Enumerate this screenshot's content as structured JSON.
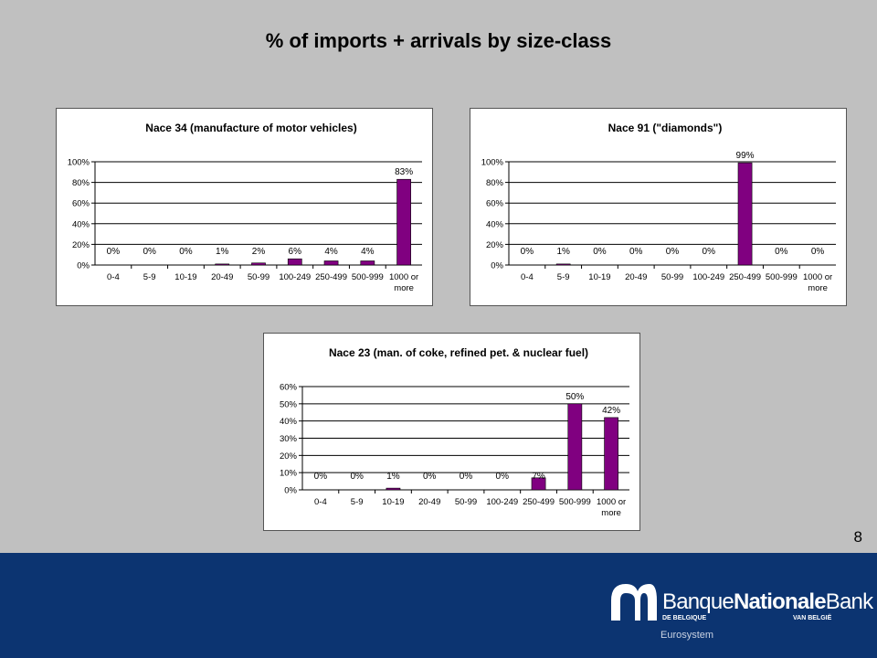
{
  "page": {
    "title": "% of imports + arrivals by size-class",
    "page_number": "8"
  },
  "branding": {
    "bank_name_part1": "Banque",
    "bank_name_part2": "Nationale",
    "bank_name_part3": "Bank",
    "sub_left": "DE BELGIQUE",
    "sub_right": "VAN BELGIË",
    "eurosystem": "Eurosystem",
    "logo_icon": "bnb-logo-icon"
  },
  "colors": {
    "bar": "#800080",
    "background": "#c0c0c0",
    "footer": "#0c3471"
  },
  "chart_data": [
    {
      "type": "bar",
      "title": "Nace 34 (manufacture of motor vehicles)",
      "categories": [
        "0-4",
        "5-9",
        "10-19",
        "20-49",
        "50-99",
        "100-249",
        "250-499",
        "500-999",
        "1000 or more"
      ],
      "values": [
        0,
        0,
        0,
        1,
        2,
        6,
        4,
        4,
        83
      ],
      "data_labels": [
        "0%",
        "0%",
        "0%",
        "1%",
        "2%",
        "6%",
        "4%",
        "4%",
        "83%"
      ],
      "yticks": [
        "0%",
        "20%",
        "40%",
        "60%",
        "80%",
        "100%"
      ],
      "ylim": [
        0,
        100
      ],
      "ystep": 20,
      "grid": true,
      "legend": "none"
    },
    {
      "type": "bar",
      "title": "Nace 91 (\"diamonds\")",
      "categories": [
        "0-4",
        "5-9",
        "10-19",
        "20-49",
        "50-99",
        "100-249",
        "250-499",
        "500-999",
        "1000 or more"
      ],
      "values": [
        0,
        1,
        0,
        0,
        0,
        0,
        99,
        0,
        0
      ],
      "data_labels": [
        "0%",
        "1%",
        "0%",
        "0%",
        "0%",
        "0%",
        "99%",
        "0%",
        "0%"
      ],
      "yticks": [
        "0%",
        "20%",
        "40%",
        "60%",
        "80%",
        "100%"
      ],
      "ylim": [
        0,
        100
      ],
      "ystep": 20,
      "grid": true,
      "legend": "none"
    },
    {
      "type": "bar",
      "title": "Nace 23 (man. of coke, refined pet. & nuclear fuel)",
      "categories": [
        "0-4",
        "5-9",
        "10-19",
        "20-49",
        "50-99",
        "100-249",
        "250-499",
        "500-999",
        "1000 or more"
      ],
      "values": [
        0,
        0,
        1,
        0,
        0,
        0,
        7,
        50,
        42
      ],
      "data_labels": [
        "0%",
        "0%",
        "1%",
        "0%",
        "0%",
        "0%",
        "7%",
        "50%",
        "42%"
      ],
      "yticks": [
        "0%",
        "10%",
        "20%",
        "30%",
        "40%",
        "50%",
        "60%"
      ],
      "ylim": [
        0,
        60
      ],
      "ystep": 10,
      "grid": true,
      "legend": "none"
    }
  ]
}
